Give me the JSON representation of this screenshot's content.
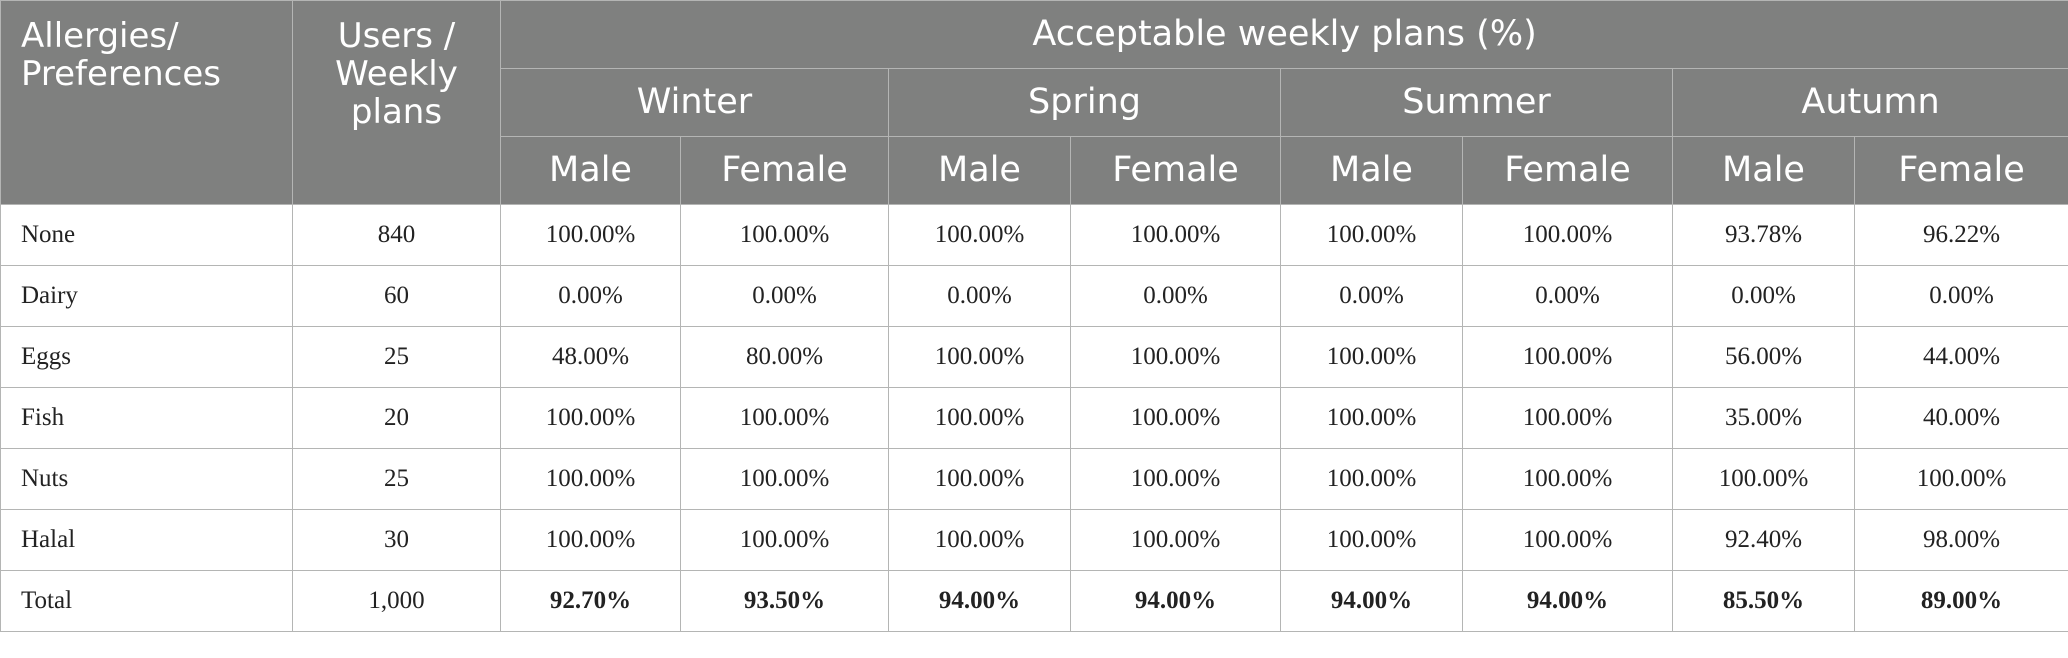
{
  "header": {
    "col_allergies": [
      "Allergies/",
      "Preferences"
    ],
    "col_users": [
      "Users /",
      "Weekly",
      "plans"
    ],
    "group_title": "Acceptable weekly plans (%)",
    "seasons": [
      "Winter",
      "Spring",
      "Summer",
      "Autumn"
    ],
    "male": "Male",
    "female": "Female"
  },
  "rows": [
    {
      "label": "None",
      "users": "840",
      "values": [
        "100.00%",
        "100.00%",
        "100.00%",
        "100.00%",
        "100.00%",
        "100.00%",
        "93.78%",
        "96.22%"
      ]
    },
    {
      "label": "Dairy",
      "users": "60",
      "values": [
        "0.00%",
        "0.00%",
        "0.00%",
        "0.00%",
        "0.00%",
        "0.00%",
        "0.00%",
        "0.00%"
      ]
    },
    {
      "label": "Eggs",
      "users": "25",
      "values": [
        "48.00%",
        "80.00%",
        "100.00%",
        "100.00%",
        "100.00%",
        "100.00%",
        "56.00%",
        "44.00%"
      ]
    },
    {
      "label": "Fish",
      "users": "20",
      "values": [
        "100.00%",
        "100.00%",
        "100.00%",
        "100.00%",
        "100.00%",
        "100.00%",
        "35.00%",
        "40.00%"
      ]
    },
    {
      "label": "Nuts",
      "users": "25",
      "values": [
        "100.00%",
        "100.00%",
        "100.00%",
        "100.00%",
        "100.00%",
        "100.00%",
        "100.00%",
        "100.00%"
      ]
    },
    {
      "label": "Halal",
      "users": "30",
      "values": [
        "100.00%",
        "100.00%",
        "100.00%",
        "100.00%",
        "100.00%",
        "100.00%",
        "92.40%",
        "98.00%"
      ]
    }
  ],
  "total": {
    "label": "Total",
    "users": "1,000",
    "values": [
      "92.70%",
      "93.50%",
      "94.00%",
      "94.00%",
      "94.00%",
      "94.00%",
      "85.50%",
      "89.00%"
    ]
  }
}
